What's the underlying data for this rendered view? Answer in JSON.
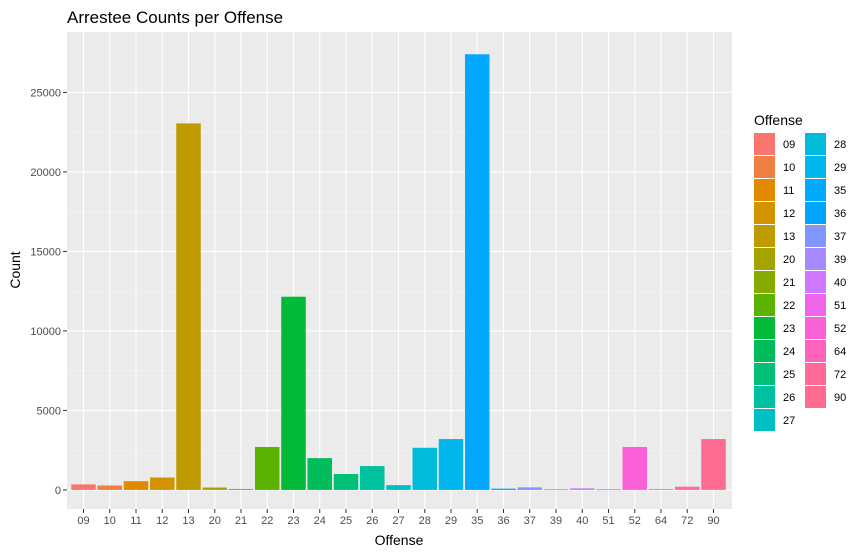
{
  "chart_data": {
    "type": "bar",
    "title": "Arrestee Counts per Offense",
    "xlabel": "Offense",
    "ylabel": "Count",
    "ylim": [
      -1200,
      28800
    ],
    "yticks": [
      0,
      5000,
      10000,
      15000,
      20000,
      25000
    ],
    "grid": true,
    "legend_title": "Offense",
    "legend_position": "right",
    "categories": [
      "09",
      "10",
      "11",
      "12",
      "13",
      "20",
      "21",
      "22",
      "23",
      "24",
      "25",
      "26",
      "27",
      "28",
      "29",
      "35",
      "36",
      "37",
      "39",
      "40",
      "51",
      "52",
      "64",
      "72",
      "90"
    ],
    "values": [
      350,
      280,
      550,
      780,
      23050,
      150,
      60,
      2700,
      12150,
      2000,
      1000,
      1500,
      300,
      2650,
      3200,
      27400,
      80,
      160,
      40,
      100,
      40,
      2700,
      50,
      200,
      3200
    ],
    "colors": [
      "#F8766D",
      "#EE8044",
      "#E38900",
      "#D39200",
      "#BF9B00",
      "#A5A300",
      "#85AA00",
      "#5BB300",
      "#00BA38",
      "#00BC59",
      "#00BF76",
      "#00C19F",
      "#00BFC4",
      "#00BBDA",
      "#00B6EB",
      "#00A8FF",
      "#00A5FF",
      "#7F96FF",
      "#A58AFF",
      "#D177FF",
      "#F066EA",
      "#FB61D7",
      "#FF62BC",
      "#FF6A98",
      "#FF6C91"
    ]
  }
}
